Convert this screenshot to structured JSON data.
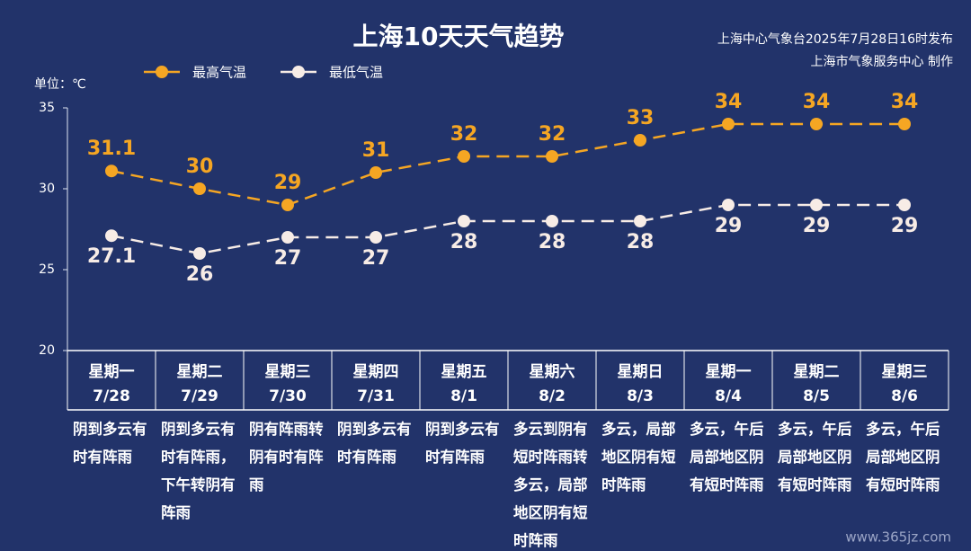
{
  "chart_data": {
    "type": "line",
    "title": "上海10天天气趋势",
    "source": [
      "上海中心气象台2025年7月28日16时发布",
      "上海市气象服务中心 制作"
    ],
    "unit_label": "单位：℃",
    "categories": [
      "星期一",
      "星期二",
      "星期三",
      "星期四",
      "星期五",
      "星期六",
      "星期日",
      "星期一",
      "星期二",
      "星期三"
    ],
    "dates": [
      "7/28",
      "7/29",
      "7/30",
      "7/31",
      "8/1",
      "8/2",
      "8/3",
      "8/4",
      "8/5",
      "8/6"
    ],
    "descriptions": [
      "阴到多云有时有阵雨",
      "阴到多云有时有阵雨，下午转阴有阵雨",
      "阴有阵雨转阴有时有阵雨",
      "阴到多云有时有阵雨",
      "阴到多云有时有阵雨",
      "多云到阴有短时阵雨转多云，局部地区阴有短时阵雨",
      "多云，局部地区阴有短时阵雨",
      "多云，午后局部地区阴有短时阵雨",
      "多云，午后局部地区阴有短时阵雨",
      "多云，午后局部地区阴有短时阵雨"
    ],
    "series": [
      {
        "name": "最高气温",
        "color": "#f5a623",
        "values": [
          31.1,
          30,
          29,
          31,
          32,
          32,
          33,
          34,
          34,
          34
        ]
      },
      {
        "name": "最低气温",
        "color": "#f7ece6",
        "values": [
          27.1,
          26,
          27,
          27,
          28,
          28,
          28,
          29,
          29,
          29
        ]
      }
    ],
    "ylim": [
      20,
      35
    ],
    "yticks": [
      20,
      25,
      30,
      35
    ],
    "line_style": "dashed",
    "watermark": "www.365jz.com"
  }
}
